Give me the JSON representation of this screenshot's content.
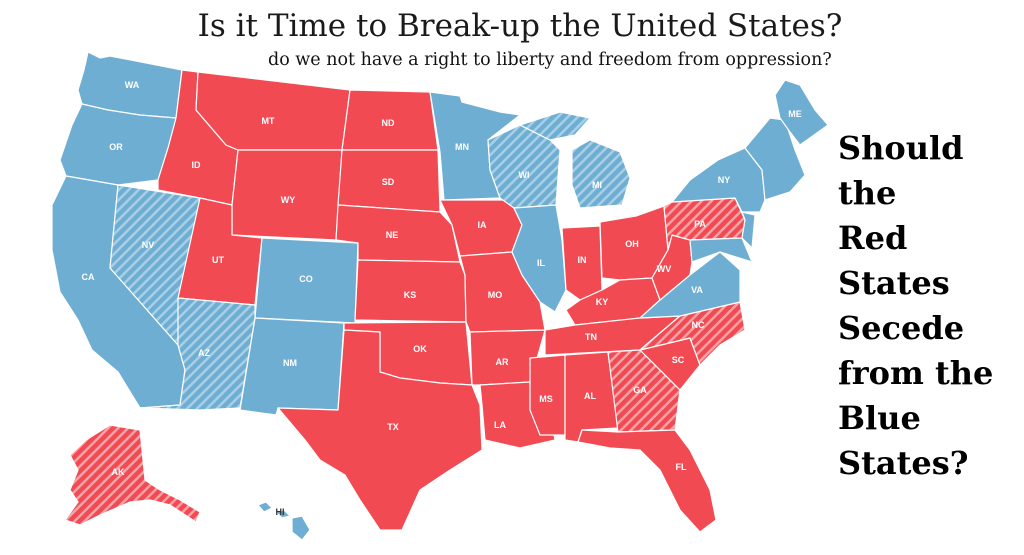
{
  "title": "Is it Time to Break-up the United States?",
  "subtitle": "do we not have a right to liberty and freedom from oppression?",
  "question_lines": [
    "Should",
    "the",
    "Red",
    "States",
    "Secede",
    "from the",
    "Blue",
    "States?"
  ],
  "colors": {
    "red": "#f24a52",
    "blue": "#6eaed3",
    "hatch_light": "#f7a3a8",
    "hatch_light_blue": "#a9cfe6"
  },
  "states": {
    "WA": {
      "label": "WA",
      "party": "blue"
    },
    "OR": {
      "label": "OR",
      "party": "blue"
    },
    "CA": {
      "label": "CA",
      "party": "blue"
    },
    "NV": {
      "label": "NV",
      "party": "blue-hatched"
    },
    "ID": {
      "label": "ID",
      "party": "red"
    },
    "MT": {
      "label": "MT",
      "party": "red"
    },
    "WY": {
      "label": "WY",
      "party": "red"
    },
    "UT": {
      "label": "UT",
      "party": "red"
    },
    "AZ": {
      "label": "AZ",
      "party": "blue-hatched"
    },
    "CO": {
      "label": "CO",
      "party": "blue"
    },
    "NM": {
      "label": "NM",
      "party": "blue"
    },
    "ND": {
      "label": "ND",
      "party": "red"
    },
    "SD": {
      "label": "SD",
      "party": "red"
    },
    "NE": {
      "label": "NE",
      "party": "red"
    },
    "KS": {
      "label": "KS",
      "party": "red"
    },
    "OK": {
      "label": "OK",
      "party": "red"
    },
    "TX": {
      "label": "TX",
      "party": "red"
    },
    "MN": {
      "label": "MN",
      "party": "blue"
    },
    "IA": {
      "label": "IA",
      "party": "red"
    },
    "MO": {
      "label": "MO",
      "party": "red"
    },
    "AR": {
      "label": "AR",
      "party": "red"
    },
    "LA": {
      "label": "LA",
      "party": "red"
    },
    "WI": {
      "label": "WI",
      "party": "blue-hatched"
    },
    "IL": {
      "label": "IL",
      "party": "blue"
    },
    "MI": {
      "label": "MI",
      "party": "blue-hatched"
    },
    "IN": {
      "label": "IN",
      "party": "red"
    },
    "OH": {
      "label": "OH",
      "party": "red"
    },
    "KY": {
      "label": "KY",
      "party": "red"
    },
    "TN": {
      "label": "TN",
      "party": "red"
    },
    "MS": {
      "label": "MS",
      "party": "red"
    },
    "AL": {
      "label": "AL",
      "party": "red"
    },
    "GA": {
      "label": "GA",
      "party": "red-hatched"
    },
    "FL": {
      "label": "FL",
      "party": "red"
    },
    "SC": {
      "label": "SC",
      "party": "red"
    },
    "NC": {
      "label": "NC",
      "party": "red-hatched"
    },
    "VA": {
      "label": "VA",
      "party": "blue"
    },
    "WV": {
      "label": "WV",
      "party": "red"
    },
    "PA": {
      "label": "PA",
      "party": "red-hatched"
    },
    "NY": {
      "label": "NY",
      "party": "blue"
    },
    "ME": {
      "label": "ME",
      "party": "blue"
    },
    "AK": {
      "label": "AK",
      "party": "red-hatched"
    },
    "HI": {
      "label": "HI",
      "party": "blue"
    }
  }
}
